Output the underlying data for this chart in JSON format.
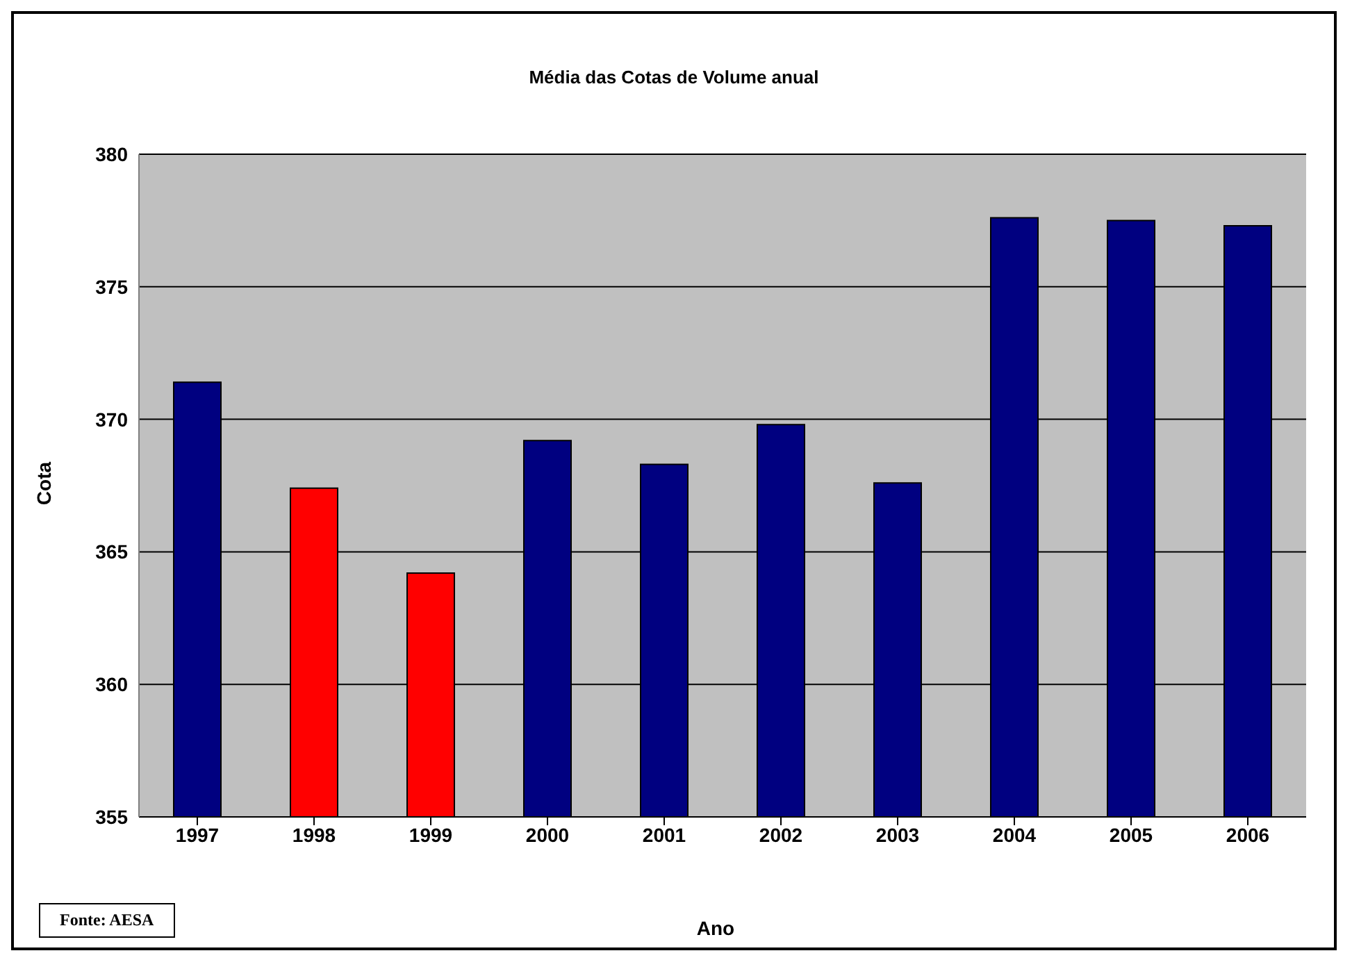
{
  "chart_data": {
    "type": "bar",
    "title": "Média das Cotas de Volume anual",
    "xlabel": "Ano",
    "ylabel": "Cota",
    "categories": [
      "1997",
      "1998",
      "1999",
      "2000",
      "2001",
      "2002",
      "2003",
      "2004",
      "2005",
      "2006"
    ],
    "values": [
      371.4,
      367.4,
      364.2,
      369.2,
      368.3,
      369.8,
      367.6,
      377.6,
      377.5,
      377.3
    ],
    "colors": [
      "#000080",
      "#ff0000",
      "#ff0000",
      "#000080",
      "#000080",
      "#000080",
      "#000080",
      "#000080",
      "#000080",
      "#000080"
    ],
    "ylim": [
      355,
      380
    ],
    "yticks": [
      355,
      360,
      365,
      370,
      375,
      380
    ],
    "grid": "y",
    "legend": false,
    "annotations": [
      "Fonte: AESA"
    ]
  }
}
